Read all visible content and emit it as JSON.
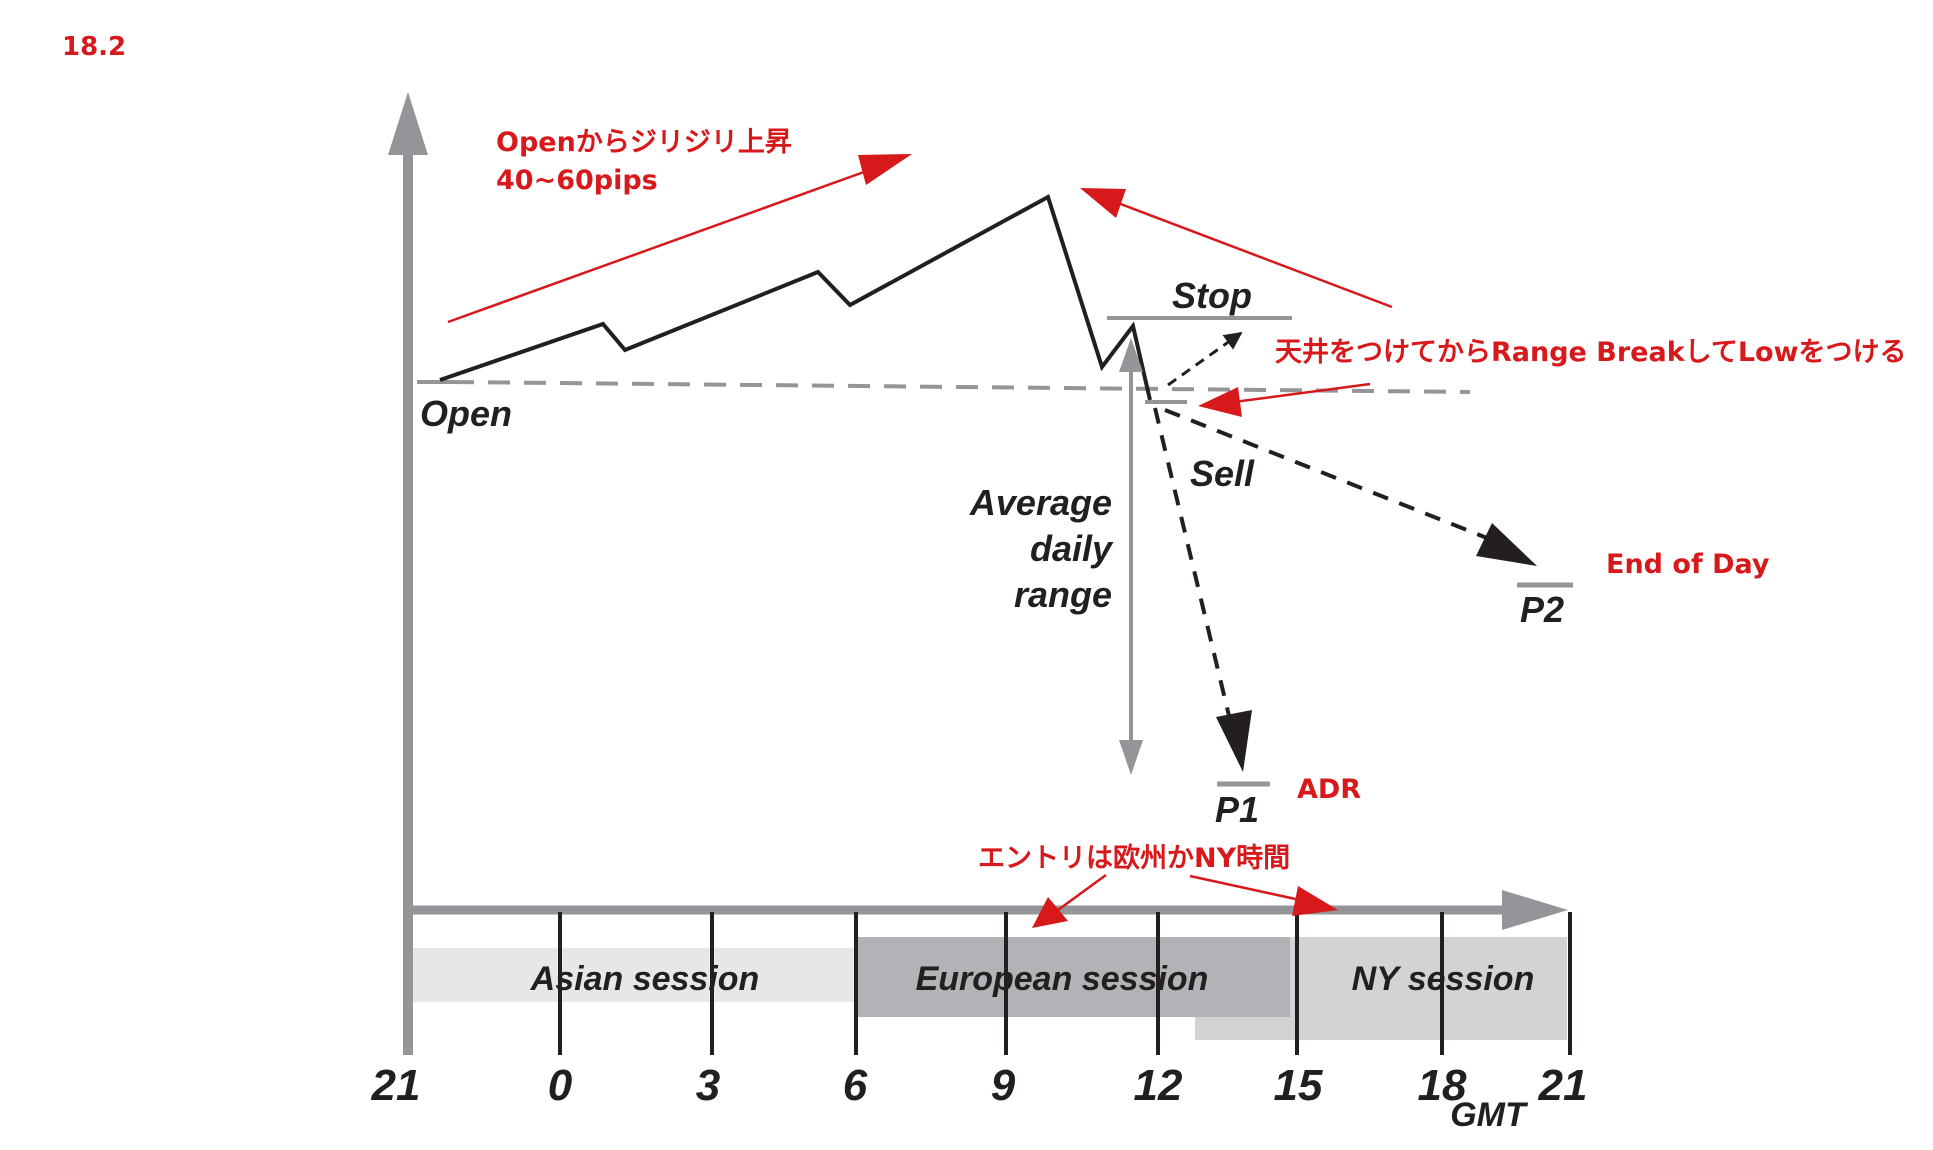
{
  "figure_number": "18.2",
  "labels": {
    "open": "Open",
    "stop": "Stop",
    "sell": "Sell",
    "adr_line1": "Average",
    "adr_line2": "daily",
    "adr_line3": "range",
    "p1": "P1",
    "p2": "P2",
    "gmt": "GMT"
  },
  "sessions": {
    "asian": "Asian session",
    "european": "European session",
    "ny": "NY session"
  },
  "x_ticks": [
    "21",
    "0",
    "3",
    "6",
    "9",
    "12",
    "15",
    "18",
    "21"
  ],
  "annotations": {
    "rise_line1": "Openからジリジリ上昇",
    "rise_line2": "40~60pips",
    "break": "天井をつけてからRange BreakしてLowをつける",
    "end_of_day": "End of Day",
    "adr": "ADR",
    "entry": "エントリは欧州かNY時間"
  },
  "colors": {
    "axis": "#939598",
    "price_line": "#231f20",
    "annotation": "#d7191c",
    "asian_band": "#e6e7e8",
    "european_band": "#b1b3b6",
    "ny_band": "#d1d3d4"
  }
}
